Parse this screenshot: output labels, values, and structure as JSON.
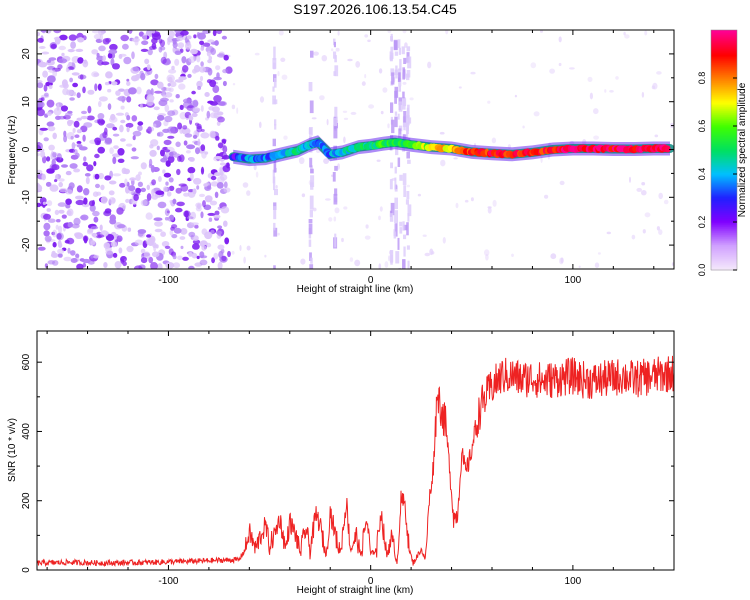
{
  "figure_title": "S197.2026.106.13.54.C45",
  "chart_data": [
    {
      "type": "heatmap",
      "title": "S197.2026.106.13.54.C45",
      "xlabel": "Height of straight line (km)",
      "ylabel": "Frequency (Hz)",
      "xlim": [
        -165,
        150
      ],
      "ylim": [
        -25,
        25
      ],
      "xticks": [
        -100,
        0,
        100
      ],
      "xtick_labels": [
        "-100",
        "0",
        "100"
      ],
      "yticks": [
        -20,
        -10,
        0,
        10,
        20
      ],
      "ytick_labels": [
        "-20",
        "-10",
        "0",
        "10",
        "20"
      ],
      "noise_region_x": [
        -165,
        -70
      ],
      "ridge": {
        "x": [
          -68,
          -60,
          -52,
          -44,
          -36,
          -30,
          -26,
          -20,
          -14,
          -6,
          0,
          6,
          12,
          20,
          30,
          40,
          50,
          60,
          70,
          80,
          90,
          100,
          110,
          120,
          130,
          140,
          148
        ],
        "freq": [
          -1.5,
          -2,
          -1.8,
          -1,
          -0.2,
          1,
          1.5,
          -1,
          -0.6,
          0.5,
          0.8,
          1.2,
          1.5,
          1,
          0.5,
          0.2,
          -0.5,
          -0.8,
          -1,
          -0.6,
          0,
          0.2,
          0.2,
          0.1,
          0.1,
          0.2,
          0.2
        ],
        "amplitude": [
          0.25,
          0.35,
          0.35,
          0.4,
          0.45,
          0.4,
          0.35,
          0.35,
          0.4,
          0.45,
          0.5,
          0.55,
          0.5,
          0.55,
          0.7,
          0.75,
          0.85,
          0.9,
          0.9,
          0.88,
          0.92,
          0.95,
          0.95,
          0.95,
          0.95,
          0.95,
          0.95
        ]
      },
      "colorbar": {
        "label": "Normalized spectral amplitude",
        "range": [
          0,
          1
        ],
        "ticks": [
          0.0,
          0.2,
          0.4,
          0.6,
          0.8
        ],
        "tick_labels": [
          "0.0",
          "0.2",
          "0.4",
          "0.6",
          "0.8"
        ],
        "colors": [
          "#f4e8fb",
          "#d0a0ff",
          "#8000ff",
          "#2020ff",
          "#00c0ff",
          "#00e060",
          "#40ff00",
          "#ffff00",
          "#ff8000",
          "#ff0000",
          "#ff0090"
        ]
      }
    },
    {
      "type": "line",
      "xlabel": "Height of straight line (km)",
      "ylabel": "SNR (10 * v/v)",
      "xlim": [
        -165,
        150
      ],
      "ylim": [
        0,
        690
      ],
      "xticks": [
        -100,
        0,
        100
      ],
      "xtick_labels": [
        "-100",
        "0",
        "100"
      ],
      "yticks": [
        0,
        200,
        400,
        600
      ],
      "ytick_labels": [
        "0",
        "200",
        "400",
        "600"
      ],
      "color": "#ee2222",
      "x": [
        -165,
        -150,
        -130,
        -110,
        -90,
        -75,
        -65,
        -62,
        -60,
        -57,
        -55,
        -52,
        -50,
        -47,
        -45,
        -42,
        -40,
        -37,
        -35,
        -32,
        -30,
        -27,
        -25,
        -22,
        -20,
        -17,
        -15,
        -12,
        -10,
        -7,
        -5,
        -2,
        0,
        3,
        5,
        8,
        10,
        13,
        15,
        17,
        19,
        21,
        23,
        25,
        27,
        29,
        31,
        33,
        35,
        37,
        39,
        41,
        43,
        45,
        47,
        49,
        51,
        53,
        55,
        57,
        60,
        65,
        70,
        75,
        80,
        85,
        90,
        95,
        100,
        105,
        110,
        115,
        120,
        125,
        130,
        135,
        140,
        145,
        150
      ],
      "y": [
        20,
        22,
        20,
        22,
        25,
        28,
        30,
        60,
        110,
        60,
        90,
        130,
        70,
        110,
        150,
        60,
        140,
        100,
        50,
        120,
        60,
        160,
        130,
        40,
        170,
        90,
        50,
        200,
        60,
        100,
        40,
        150,
        45,
        60,
        170,
        40,
        100,
        20,
        200,
        190,
        60,
        20,
        40,
        60,
        30,
        200,
        300,
        520,
        460,
        420,
        300,
        150,
        160,
        340,
        280,
        320,
        380,
        440,
        480,
        500,
        530,
        560,
        560,
        550,
        555,
        545,
        550,
        555,
        560,
        550,
        545,
        550,
        555,
        560,
        550,
        555,
        560,
        565,
        570
      ]
    }
  ]
}
